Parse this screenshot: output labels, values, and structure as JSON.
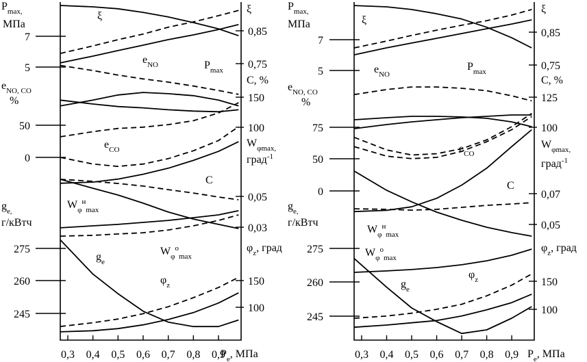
{
  "chart_data": [
    {
      "type": "line",
      "xlim": [
        0.27,
        0.99
      ],
      "xticks": [
        {
          "value": 0.3,
          "label": "0,3"
        },
        {
          "value": 0.4,
          "label": "0,4"
        },
        {
          "value": 0.5,
          "label": "0,5"
        },
        {
          "value": 0.6,
          "label": "0,6"
        },
        {
          "value": 0.7,
          "label": "0,7"
        },
        {
          "value": 0.8,
          "label": "0,8"
        },
        {
          "value": 0.9,
          "label": "0,9"
        }
      ],
      "xlabel": [
        {
          "text": "P"
        },
        {
          "sub": "e"
        },
        {
          "text": ", МПа"
        }
      ],
      "x": [
        0.27,
        0.4,
        0.5,
        0.6,
        0.7,
        0.8,
        0.9,
        0.98
      ],
      "scales": [
        {
          "side": "left",
          "title": [
            [
              {
                "text": "P"
              },
              {
                "sub": "max,"
              }
            ],
            [
              {
                "text": "МПа"
              }
            ]
          ],
          "ticks": [
            5,
            7
          ]
        },
        {
          "side": "right",
          "title": [
            [
              {
                "text": "ξ"
              }
            ]
          ],
          "ticks": [
            {
              "value": 0.75,
              "label": "0,75"
            },
            {
              "value": 0.85,
              "label": "0,85"
            }
          ]
        },
        {
          "side": "left",
          "title": [
            [
              {
                "text": "e"
              },
              {
                "sub": "NO, CO"
              }
            ],
            [
              {
                "text": "%"
              }
            ]
          ],
          "ticks": [
            0,
            50
          ]
        },
        {
          "side": "right",
          "title": [
            [
              {
                "text": "C, %"
              }
            ]
          ],
          "ticks": [
            100,
            150
          ]
        },
        {
          "side": "right",
          "title": [
            [
              {
                "text": "W"
              },
              {
                "sub": "φmax,"
              }
            ],
            [
              {
                "text": "град"
              },
              {
                "sup": "-1"
              }
            ]
          ],
          "ticks": [
            {
              "value": 0.03,
              "label": "0,03"
            },
            {
              "value": 0.05,
              "label": "0,05"
            }
          ]
        },
        {
          "side": "left",
          "title": [
            [
              {
                "text": "g"
              },
              {
                "sub": "e,"
              }
            ],
            [
              {
                "text": "г/кВтч"
              }
            ]
          ],
          "ticks": [
            245,
            260,
            275
          ]
        },
        {
          "side": "right",
          "title": [
            [
              {
                "text": "φ"
              },
              {
                "sub": "z"
              },
              {
                "text": ", град"
              }
            ]
          ],
          "ticks": [
            100,
            150
          ]
        }
      ],
      "series": [
        {
          "scale": 1,
          "dashed": false,
          "values": [
            0.927,
            0.923,
            0.917,
            0.906,
            0.892,
            0.875,
            0.856,
            0.835
          ]
        },
        {
          "scale": 1,
          "dashed": true,
          "values": [
            0.781,
            0.804,
            0.823,
            0.84,
            0.861,
            0.877,
            0.896,
            0.912
          ]
        },
        {
          "scale": 0,
          "dashed": false,
          "values": [
            5.27,
            5.71,
            6.07,
            6.42,
            6.78,
            7.09,
            7.44,
            7.76
          ]
        },
        {
          "scale": 2,
          "dashed": true,
          "values": [
            143,
            135,
            128,
            122,
            117,
            111,
            104,
            98
          ]
        },
        {
          "scale": 2,
          "dashed": false,
          "values": [
            89,
            83,
            79,
            77,
            74,
            72,
            71,
            74
          ]
        },
        {
          "scale": 2,
          "dashed": false,
          "values": [
            80,
            89,
            97,
            101,
            99,
            96,
            89,
            80
          ]
        },
        {
          "scale": 2,
          "dashed": true,
          "values": [
            32,
            40,
            45,
            47,
            51,
            57,
            69,
            85
          ]
        },
        {
          "scale": 3,
          "dashed": true,
          "values": [
            50,
            39,
            35,
            39,
            48,
            61,
            78,
            101
          ]
        },
        {
          "scale": 3,
          "dashed": false,
          "values": [
            7,
            9,
            14,
            22,
            32,
            45,
            60,
            76
          ]
        },
        {
          "scale": 4,
          "dashed": true,
          "values": [
            0.0611,
            0.0598,
            0.0584,
            0.0567,
            0.0544,
            0.0522,
            0.0496,
            0.0478
          ]
        },
        {
          "scale": 4,
          "dashed": false,
          "values": [
            0.0611,
            0.0553,
            0.0509,
            0.0456,
            0.0398,
            0.0353,
            0.0318,
            0.0291
          ]
        },
        {
          "scale": 4,
          "dashed": false,
          "values": [
            0.0296,
            0.0309,
            0.0318,
            0.0331,
            0.0344,
            0.0362,
            0.038,
            0.0407
          ]
        },
        {
          "scale": 4,
          "dashed": true,
          "values": [
            0.0242,
            0.0247,
            0.0256,
            0.0264,
            0.0282,
            0.0309,
            0.0344,
            0.038
          ]
        },
        {
          "scale": 5,
          "dashed": false,
          "values": [
            279,
            263,
            254,
            246,
            241,
            239,
            239,
            242
          ]
        },
        {
          "scale": 6,
          "dashed": true,
          "values": [
            64,
            71,
            78,
            88,
            101,
            118,
            137,
            156
          ]
        },
        {
          "scale": 6,
          "dashed": false,
          "values": [
            54,
            56,
            60,
            67,
            77,
            90,
            108,
            127
          ]
        }
      ],
      "annotations": [
        [
          {
            "text": "ξ"
          }
        ],
        [
          {
            "text": "P"
          },
          {
            "sub": "max"
          }
        ],
        [
          {
            "text": "e"
          },
          {
            "sub": "NO"
          }
        ],
        [
          {
            "text": "e"
          },
          {
            "sub": "CO"
          }
        ],
        [
          {
            "text": "C"
          }
        ],
        [
          {
            "text": "W"
          },
          {
            "sub": "φ"
          },
          {
            "sup": "н"
          },
          {
            "sub": "max"
          }
        ],
        [
          {
            "text": "W"
          },
          {
            "sub": "φ"
          },
          {
            "sup": "o"
          },
          {
            "sub": "max"
          }
        ],
        [
          {
            "text": "g"
          },
          {
            "sub": "e"
          }
        ],
        [
          {
            "text": "φ"
          },
          {
            "sub": "z"
          }
        ]
      ]
    },
    {
      "type": "line",
      "xlim": [
        0.27,
        0.99
      ],
      "xticks": [
        {
          "value": 0.3,
          "label": "0,3"
        },
        {
          "value": 0.4,
          "label": "0,4"
        },
        {
          "value": 0.5,
          "label": "0,5"
        },
        {
          "value": 0.6,
          "label": "0,6"
        },
        {
          "value": 0.7,
          "label": "0,7"
        },
        {
          "value": 0.8,
          "label": "0,8"
        },
        {
          "value": 0.9,
          "label": "0,9"
        }
      ],
      "xlabel": [
        {
          "text": "P"
        },
        {
          "sub": "e"
        },
        {
          "text": ", МПа"
        }
      ],
      "x": [
        0.27,
        0.4,
        0.5,
        0.6,
        0.7,
        0.8,
        0.9,
        0.98
      ],
      "scales": [
        {
          "side": "left",
          "title": [
            [
              {
                "text": "P"
              },
              {
                "sub": "max,"
              }
            ],
            [
              {
                "text": "МПа"
              }
            ]
          ],
          "ticks": [
            5,
            7
          ]
        },
        {
          "side": "right",
          "title": [
            [
              {
                "text": "ξ"
              }
            ]
          ],
          "ticks": [
            {
              "value": 0.75,
              "label": "0,75"
            },
            {
              "value": 0.85,
              "label": "0,85"
            }
          ]
        },
        {
          "side": "left",
          "title": [
            [
              {
                "text": "e"
              },
              {
                "sub": "NO, CO"
              }
            ],
            [
              {
                "text": "%"
              }
            ]
          ],
          "ticks": [
            0,
            50,
            75
          ]
        },
        {
          "side": "right",
          "title": [
            [
              {
                "text": "C, %"
              }
            ]
          ],
          "ticks": [
            100,
            125
          ]
        },
        {
          "side": "right",
          "title": [
            [
              {
                "text": "W"
              },
              {
                "sub": "φmax,"
              }
            ],
            [
              {
                "text": "град"
              },
              {
                "sup": "-1"
              }
            ]
          ],
          "ticks": [
            {
              "value": 0.05,
              "label": "0,05"
            },
            {
              "value": 0.07,
              "label": "0,07"
            }
          ]
        },
        {
          "side": "left",
          "title": [
            [
              {
                "text": "g"
              },
              {
                "sub": "e,"
              }
            ],
            [
              {
                "text": "г/кВтч"
              }
            ]
          ],
          "ticks": [
            245,
            260,
            275
          ]
        },
        {
          "side": "right",
          "title": [
            [
              {
                "text": "φ"
              },
              {
                "sub": "z"
              },
              {
                "text": ", град"
              }
            ]
          ],
          "ticks": [
            100,
            150
          ]
        }
      ],
      "series": [
        {
          "scale": 1,
          "dashed": false,
          "values": [
            0.931,
            0.927,
            0.919,
            0.906,
            0.89,
            0.865,
            0.833,
            0.802
          ]
        },
        {
          "scale": 1,
          "dashed": true,
          "values": [
            0.802,
            0.823,
            0.84,
            0.856,
            0.871,
            0.885,
            0.902,
            0.919
          ]
        },
        {
          "scale": 0,
          "dashed": false,
          "values": [
            6.02,
            6.47,
            6.78,
            7.09,
            7.4,
            7.71,
            8.02,
            8.29
          ]
        },
        {
          "scale": 2,
          "dashed": true,
          "values": [
            101,
            105,
            107,
            107,
            106,
            104,
            100,
            96
          ]
        },
        {
          "scale": 2,
          "dashed": false,
          "values": [
            81.0,
            82.6,
            83.7,
            83.7,
            83.2,
            82.1,
            79.3,
            75.5
          ]
        },
        {
          "scale": 2,
          "dashed": false,
          "values": [
            73.9,
            77.2,
            79.3,
            81.0,
            82.6,
            83.7,
            84.8,
            84.8
          ]
        },
        {
          "scale": 2,
          "dashed": true,
          "values": [
            67,
            57,
            53,
            54,
            58,
            65,
            75.5,
            86
          ]
        },
        {
          "scale": 3,
          "dashed": true,
          "values": [
            84,
            76,
            74,
            75,
            80,
            88,
            98,
            109
          ]
        },
        {
          "scale": 3,
          "dashed": false,
          "values": [
            30,
            31,
            34,
            41,
            52,
            66,
            84,
            98
          ]
        },
        {
          "scale": 4,
          "dashed": false,
          "values": [
            0.0847,
            0.0722,
            0.0647,
            0.058,
            0.0527,
            0.0482,
            0.0447,
            0.0424
          ]
        },
        {
          "scale": 4,
          "dashed": true,
          "values": [
            0.0602,
            0.0598,
            0.0593,
            0.0598,
            0.0611,
            0.0624,
            0.0633,
            0.0642
          ]
        },
        {
          "scale": 4,
          "dashed": false,
          "values": [
            0.0189,
            0.0198,
            0.0207,
            0.022,
            0.0238,
            0.0264,
            0.03,
            0.034
          ]
        },
        {
          "scale": 5,
          "dashed": false,
          "values": [
            270.5,
            257.7,
            248.6,
            242.6,
            237.4,
            239.0,
            244.1,
            249.2
          ]
        },
        {
          "scale": 6,
          "dashed": true,
          "values": [
            84,
            88,
            93,
            100,
            109,
            124,
            143,
            163
          ]
        },
        {
          "scale": 6,
          "dashed": false,
          "values": [
            68,
            72,
            76,
            80,
            88,
            99,
            112,
            127
          ]
        }
      ],
      "annotations": [
        [
          {
            "text": "ξ"
          }
        ],
        [
          {
            "text": "P"
          },
          {
            "sub": "max"
          }
        ],
        [
          {
            "text": "e"
          },
          {
            "sub": "NO"
          }
        ],
        [
          {
            "text": "e"
          },
          {
            "sub": "CO"
          }
        ],
        [
          {
            "text": "C"
          }
        ],
        [
          {
            "text": "W"
          },
          {
            "sub": "φ"
          },
          {
            "sup": "н"
          },
          {
            "sub": "max"
          }
        ],
        [
          {
            "text": "W"
          },
          {
            "sub": "φ"
          },
          {
            "sup": "o"
          },
          {
            "sub": "max"
          }
        ],
        [
          {
            "text": "g"
          },
          {
            "sub": "e"
          }
        ],
        [
          {
            "text": "φ"
          },
          {
            "sub": "z"
          }
        ]
      ]
    }
  ]
}
